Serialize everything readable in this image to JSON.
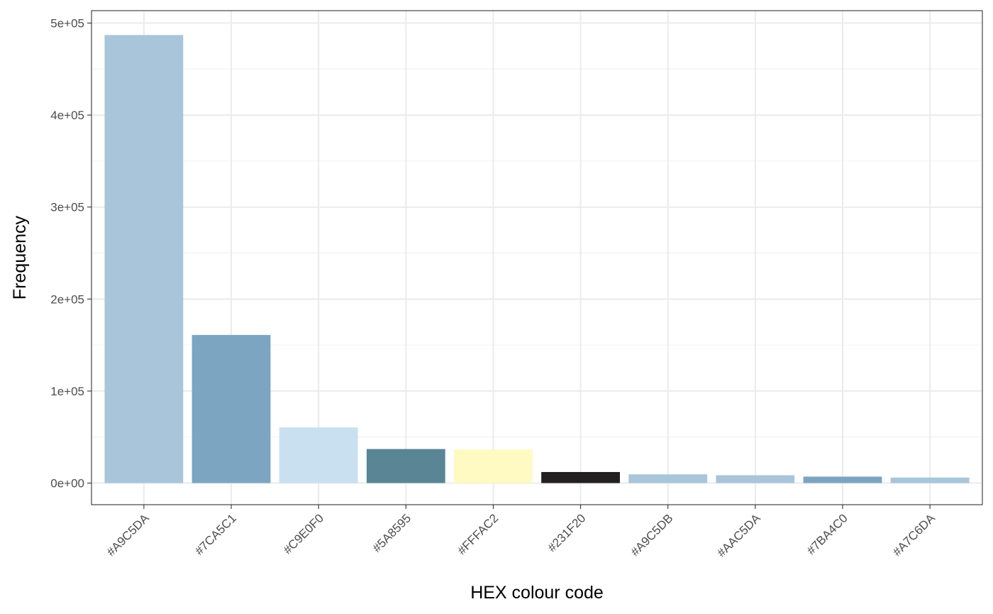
{
  "chart_data": {
    "type": "bar",
    "title": "",
    "xlabel": "HEX colour code",
    "ylabel": "Frequency",
    "categories": [
      "#A9C5DA",
      "#7CA5C1",
      "#C9E0F0",
      "#5A8595",
      "#FFFAC2",
      "#231F20",
      "#A9C5DB",
      "#AAC5DA",
      "#7BA4C0",
      "#A7C6DA"
    ],
    "values": [
      487000,
      161000,
      60500,
      37000,
      36500,
      12000,
      9500,
      8500,
      7000,
      6000
    ],
    "bar_colors": [
      "#A9C5DA",
      "#7CA5C1",
      "#C9E0F0",
      "#5A8595",
      "#FFFAC2",
      "#231F20",
      "#A9C5DB",
      "#AAC5DA",
      "#7BA4C0",
      "#A7C6DA"
    ],
    "ylim": [
      -23500,
      513500
    ],
    "yticks": [
      0,
      100000,
      200000,
      300000,
      400000,
      500000
    ],
    "ytick_labels": [
      "0e+00",
      "1e+05",
      "2e+05",
      "3e+05",
      "4e+05",
      "5e+05"
    ],
    "grid": true,
    "theme": "bw"
  }
}
